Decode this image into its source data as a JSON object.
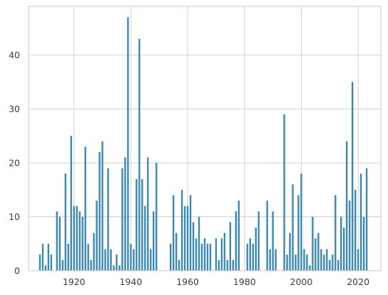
{
  "chart_data": {
    "type": "bar",
    "title": "",
    "xlabel": "",
    "ylabel": "",
    "xlim": [
      1904,
      2028
    ],
    "ylim": [
      0,
      49
    ],
    "grid": true,
    "legend": "none",
    "bar_color": "#3a89b4",
    "x_ticks": [
      1920,
      1940,
      1960,
      1980,
      2000,
      2020
    ],
    "y_ticks": [
      0,
      10,
      20,
      30,
      40
    ],
    "x_tick_labels": [
      "1920",
      "1940",
      "1960",
      "1980",
      "2000",
      "2020"
    ],
    "y_tick_labels": [
      "0",
      "10",
      "20",
      "30",
      "40"
    ],
    "x": [
      1908,
      1909,
      1910,
      1911,
      1912,
      1914,
      1915,
      1916,
      1917,
      1918,
      1919,
      1920,
      1921,
      1922,
      1923,
      1924,
      1925,
      1926,
      1927,
      1928,
      1929,
      1930,
      1931,
      1932,
      1933,
      1934,
      1935,
      1936,
      1937,
      1938,
      1939,
      1940,
      1941,
      1942,
      1943,
      1944,
      1945,
      1946,
      1947,
      1948,
      1949,
      1954,
      1955,
      1956,
      1957,
      1958,
      1959,
      1960,
      1961,
      1962,
      1963,
      1964,
      1965,
      1966,
      1967,
      1968,
      1970,
      1971,
      1972,
      1973,
      1974,
      1975,
      1976,
      1977,
      1978,
      1981,
      1982,
      1983,
      1984,
      1985,
      1988,
      1989,
      1990,
      1991,
      1994,
      1995,
      1996,
      1997,
      1998,
      1999,
      2000,
      2001,
      2002,
      2003,
      2004,
      2005,
      2006,
      2007,
      2008,
      2009,
      2010,
      2011,
      2012,
      2013,
      2014,
      2015,
      2016,
      2017,
      2018,
      2019,
      2020,
      2021,
      2022,
      2023
    ],
    "values": [
      3,
      5,
      1,
      5,
      3,
      11,
      10,
      2,
      18,
      5,
      25,
      12,
      12,
      11,
      10,
      23,
      5,
      2,
      7,
      13,
      22,
      24,
      4,
      19,
      4,
      1,
      3,
      1,
      19,
      21,
      47,
      5,
      4,
      17,
      43,
      17,
      12,
      21,
      4,
      11,
      20,
      5,
      14,
      7,
      2,
      15,
      12,
      12,
      14,
      9,
      6,
      10,
      5,
      6,
      5,
      5,
      6,
      2,
      6,
      7,
      2,
      9,
      2,
      11,
      13,
      5,
      6,
      5,
      8,
      11,
      13,
      4,
      11,
      4,
      29,
      3,
      7,
      16,
      3,
      14,
      18,
      4,
      3,
      1,
      10,
      6,
      7,
      4,
      3,
      4,
      2,
      3,
      14,
      2,
      10,
      8,
      24,
      13,
      35,
      15,
      4,
      18,
      10,
      19
    ]
  }
}
